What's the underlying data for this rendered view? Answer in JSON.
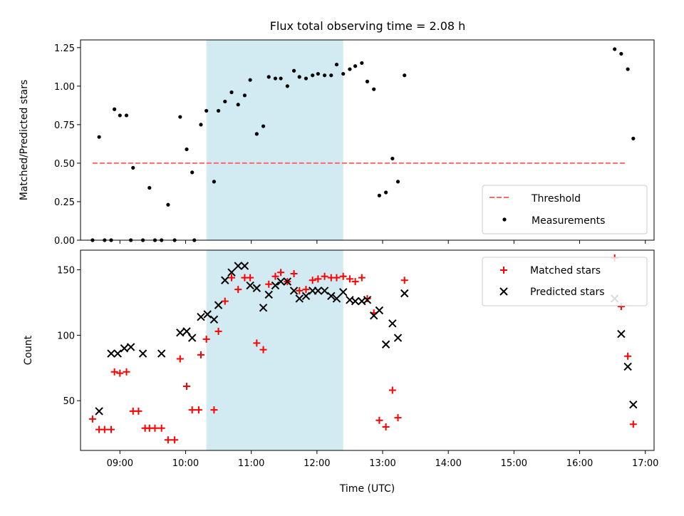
{
  "title": "Flux total observing time = 2.08 h",
  "colors": {
    "span": "#add8e6",
    "threshold": "#ff6b6b",
    "measurement": "#000000",
    "matched": "#ff0000",
    "predicted": "#000000"
  },
  "chart_data": [
    {
      "type": "scatter",
      "ylabel": "Matched/Predicted stars",
      "ylim": [
        0,
        1.3
      ],
      "yticks": [
        "0.00",
        "0.25",
        "0.50",
        "0.75",
        "1.00",
        "1.25"
      ],
      "xlim": [
        "08:24",
        "17:08"
      ],
      "shaded_span": [
        "10:19",
        "12:24"
      ],
      "threshold": {
        "x": [
          "08:35",
          "16:43"
        ],
        "y": 0.5
      },
      "legend": {
        "position": "lower right",
        "entries": [
          "Threshold",
          "Measurements"
        ]
      },
      "series": [
        {
          "name": "Measurements",
          "marker": "dot",
          "points": [
            [
              "08:35",
              0.0
            ],
            [
              "08:41",
              0.67
            ],
            [
              "08:46",
              0.0
            ],
            [
              "08:52",
              0.0
            ],
            [
              "08:55",
              0.85
            ],
            [
              "09:00",
              0.81
            ],
            [
              "09:06",
              0.81
            ],
            [
              "09:10",
              0.0
            ],
            [
              "09:12",
              0.47
            ],
            [
              "09:21",
              0.0
            ],
            [
              "09:27",
              0.34
            ],
            [
              "09:32",
              0.0
            ],
            [
              "09:38",
              0.0
            ],
            [
              "09:44",
              0.23
            ],
            [
              "09:50",
              0.0
            ],
            [
              "09:55",
              0.8
            ],
            [
              "10:01",
              0.59
            ],
            [
              "10:06",
              0.44
            ],
            [
              "10:08",
              0.0
            ],
            [
              "10:14",
              0.75
            ],
            [
              "10:19",
              0.84
            ],
            [
              "10:26",
              0.38
            ],
            [
              "10:30",
              0.84
            ],
            [
              "10:36",
              0.9
            ],
            [
              "10:42",
              0.96
            ],
            [
              "10:48",
              0.88
            ],
            [
              "10:54",
              0.94
            ],
            [
              "10:59",
              1.04
            ],
            [
              "11:05",
              0.69
            ],
            [
              "11:11",
              0.74
            ],
            [
              "11:16",
              1.06
            ],
            [
              "11:22",
              1.05
            ],
            [
              "11:27",
              1.05
            ],
            [
              "11:33",
              1.0
            ],
            [
              "11:39",
              1.1
            ],
            [
              "11:44",
              1.06
            ],
            [
              "11:50",
              1.05
            ],
            [
              "11:56",
              1.07
            ],
            [
              "12:01",
              1.08
            ],
            [
              "12:07",
              1.07
            ],
            [
              "12:13",
              1.07
            ],
            [
              "12:18",
              1.14
            ],
            [
              "12:24",
              1.08
            ],
            [
              "12:30",
              1.11
            ],
            [
              "12:35",
              1.13
            ],
            [
              "12:41",
              1.15
            ],
            [
              "12:46",
              1.03
            ],
            [
              "12:52",
              0.98
            ],
            [
              "12:57",
              0.29
            ],
            [
              "13:03",
              0.31
            ],
            [
              "13:09",
              0.53
            ],
            [
              "13:14",
              0.38
            ],
            [
              "13:20",
              1.07
            ],
            [
              "16:32",
              1.24
            ],
            [
              "16:38",
              1.21
            ],
            [
              "16:44",
              1.11
            ],
            [
              "16:49",
              0.66
            ]
          ]
        }
      ]
    },
    {
      "type": "scatter",
      "xlabel": "Time (UTC)",
      "ylabel": "Count",
      "ylim": [
        12,
        165
      ],
      "yticks": [
        "50",
        "100",
        "150"
      ],
      "xlim": [
        "08:24",
        "17:08"
      ],
      "xticks": [
        "09:00",
        "10:00",
        "11:00",
        "12:00",
        "13:00",
        "14:00",
        "15:00",
        "16:00",
        "17:00"
      ],
      "shaded_span": [
        "10:19",
        "12:24"
      ],
      "legend": {
        "position": "upper right",
        "entries": [
          "Matched stars",
          "Predicted stars"
        ]
      },
      "series": [
        {
          "name": "Matched stars",
          "marker": "plus",
          "points": [
            [
              "08:35",
              36
            ],
            [
              "08:41",
              28
            ],
            [
              "08:46",
              28
            ],
            [
              "08:52",
              28
            ],
            [
              "08:55",
              72
            ],
            [
              "09:00",
              71
            ],
            [
              "09:06",
              72
            ],
            [
              "09:12",
              42
            ],
            [
              "09:17",
              42
            ],
            [
              "09:23",
              29
            ],
            [
              "09:27",
              29
            ],
            [
              "09:32",
              29
            ],
            [
              "09:38",
              29
            ],
            [
              "09:44",
              20
            ],
            [
              "09:50",
              20
            ],
            [
              "09:55",
              82
            ],
            [
              "10:01",
              61
            ],
            [
              "10:06",
              43
            ],
            [
              "10:12",
              43
            ],
            [
              "10:14",
              85
            ],
            [
              "10:19",
              97
            ],
            [
              "10:26",
              43
            ],
            [
              "10:30",
              103
            ],
            [
              "10:36",
              126
            ],
            [
              "10:42",
              144
            ],
            [
              "10:48",
              135
            ],
            [
              "10:54",
              144
            ],
            [
              "10:59",
              144
            ],
            [
              "11:05",
              94
            ],
            [
              "11:11",
              89
            ],
            [
              "11:16",
              139
            ],
            [
              "11:22",
              145
            ],
            [
              "11:27",
              148
            ],
            [
              "11:33",
              141
            ],
            [
              "11:39",
              147
            ],
            [
              "11:44",
              134
            ],
            [
              "11:50",
              135
            ],
            [
              "11:56",
              142
            ],
            [
              "12:01",
              143
            ],
            [
              "12:07",
              145
            ],
            [
              "12:13",
              144
            ],
            [
              "12:18",
              144
            ],
            [
              "12:24",
              145
            ],
            [
              "12:30",
              143
            ],
            [
              "12:35",
              141
            ],
            [
              "12:41",
              144
            ],
            [
              "12:46",
              128
            ],
            [
              "12:52",
              117
            ],
            [
              "12:57",
              35
            ],
            [
              "13:03",
              30
            ],
            [
              "13:09",
              58
            ],
            [
              "13:14",
              37
            ],
            [
              "13:20",
              142
            ],
            [
              "16:32",
              159
            ],
            [
              "16:38",
              122
            ],
            [
              "16:44",
              84
            ],
            [
              "16:49",
              32
            ]
          ]
        },
        {
          "name": "Predicted stars",
          "marker": "x",
          "points": [
            [
              "08:41",
              42
            ],
            [
              "08:52",
              86
            ],
            [
              "08:58",
              86
            ],
            [
              "09:04",
              90
            ],
            [
              "09:10",
              91
            ],
            [
              "09:21",
              86
            ],
            [
              "09:38",
              86
            ],
            [
              "09:55",
              102
            ],
            [
              "10:01",
              103
            ],
            [
              "10:06",
              98
            ],
            [
              "10:14",
              114
            ],
            [
              "10:20",
              116
            ],
            [
              "10:26",
              112
            ],
            [
              "10:30",
              123
            ],
            [
              "10:36",
              142
            ],
            [
              "10:42",
              148
            ],
            [
              "10:48",
              153
            ],
            [
              "10:54",
              153
            ],
            [
              "10:59",
              138
            ],
            [
              "11:05",
              136
            ],
            [
              "11:11",
              121
            ],
            [
              "11:16",
              131
            ],
            [
              "11:22",
              138
            ],
            [
              "11:27",
              141
            ],
            [
              "11:33",
              141
            ],
            [
              "11:39",
              134
            ],
            [
              "11:44",
              128
            ],
            [
              "11:50",
              130
            ],
            [
              "11:56",
              134
            ],
            [
              "12:01",
              134
            ],
            [
              "12:07",
              134
            ],
            [
              "12:13",
              130
            ],
            [
              "12:18",
              128
            ],
            [
              "12:24",
              133
            ],
            [
              "12:30",
              127
            ],
            [
              "12:35",
              126
            ],
            [
              "12:41",
              126
            ],
            [
              "12:46",
              127
            ],
            [
              "12:52",
              115
            ],
            [
              "12:57",
              119
            ],
            [
              "13:03",
              93
            ],
            [
              "13:09",
              109
            ],
            [
              "13:14",
              98
            ],
            [
              "13:20",
              132
            ],
            [
              "16:32",
              128
            ],
            [
              "16:38",
              101
            ],
            [
              "16:44",
              76
            ],
            [
              "16:49",
              47
            ]
          ]
        }
      ]
    }
  ]
}
